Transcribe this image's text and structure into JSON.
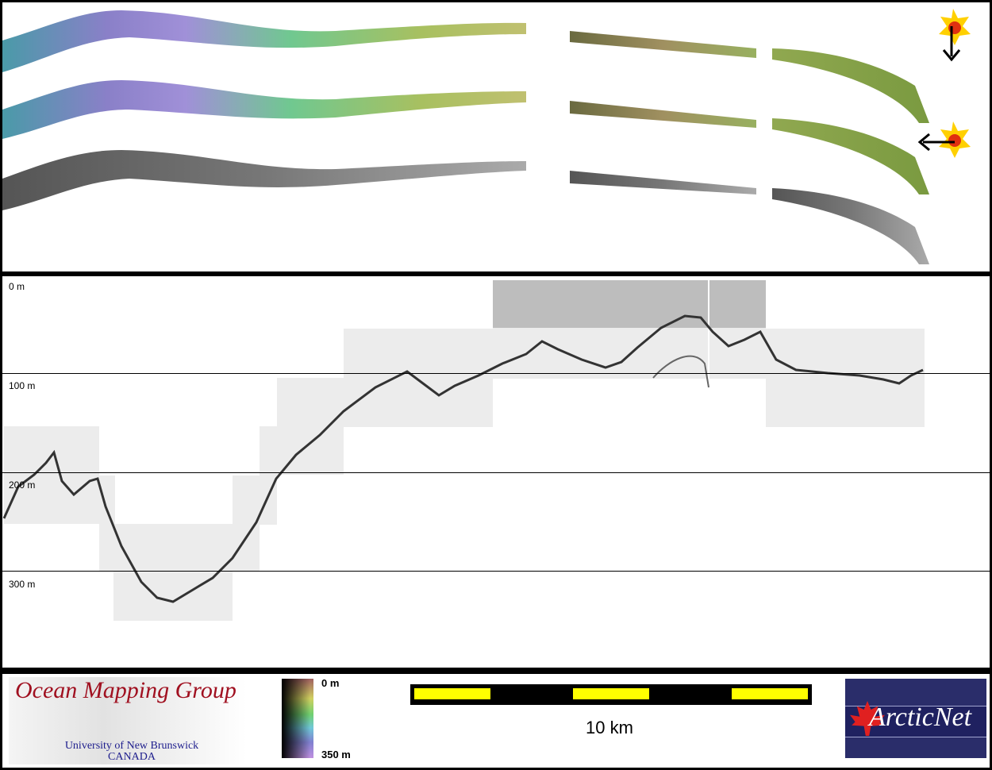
{
  "profile": {
    "depth_labels": [
      "0 m",
      "100 m",
      "200 m",
      "300 m"
    ]
  },
  "legend": {
    "logo_left": {
      "title": "Ocean Mapping Group",
      "line1": "University of New Brunswick",
      "line2": "CANADA"
    },
    "colorbar": {
      "top_label": "0 m",
      "bottom_label": "350 m"
    },
    "scale_bar": {
      "label": "10 km",
      "colors": {
        "fill": "#ffff00",
        "bar": "#000000"
      }
    },
    "logo_right": {
      "text": "ArcticNet"
    }
  },
  "sun_icons": [
    {
      "name": "sun-illumination-north",
      "arrow": "down"
    },
    {
      "name": "sun-illumination-east",
      "arrow": "left"
    }
  ]
}
